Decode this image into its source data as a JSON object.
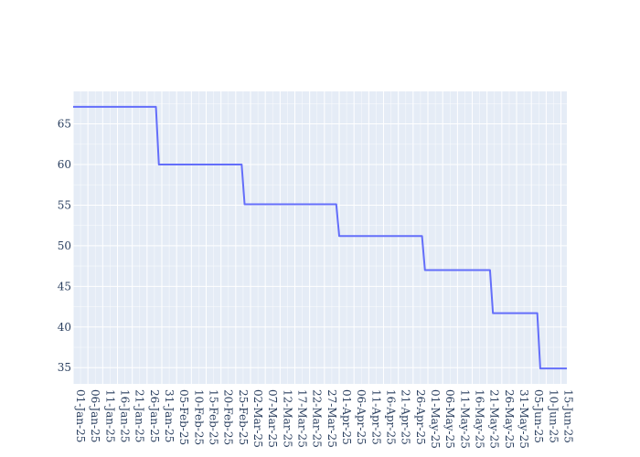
{
  "chart_data": {
    "type": "line",
    "title": "",
    "xlabel": "",
    "ylabel": "",
    "colors": {
      "plot_background": "#e5ecf6",
      "grid": "#ffffff",
      "line": "#636efa",
      "tick_text": "#2a3f5f"
    },
    "grid": true,
    "legend": "none",
    "x_axis_type": "date",
    "x_range": [
      "2025-01-01",
      "2025-06-17"
    ],
    "ylim": [
      33,
      69
    ],
    "y_ticks": [
      35,
      40,
      45,
      50,
      55,
      60,
      65
    ],
    "x_ticks": [
      {
        "date": "2025-01-01",
        "label": "01-Jan-25"
      },
      {
        "date": "2025-01-06",
        "label": "06-Jan-25"
      },
      {
        "date": "2025-01-11",
        "label": "11-Jan-25"
      },
      {
        "date": "2025-01-16",
        "label": "16-Jan-25"
      },
      {
        "date": "2025-01-21",
        "label": "21-Jan-25"
      },
      {
        "date": "2025-01-26",
        "label": "26-Jan-25"
      },
      {
        "date": "2025-01-31",
        "label": "31-Jan-25"
      },
      {
        "date": "2025-02-05",
        "label": "05-Feb-25"
      },
      {
        "date": "2025-02-10",
        "label": "10-Feb-25"
      },
      {
        "date": "2025-02-15",
        "label": "15-Feb-25"
      },
      {
        "date": "2025-02-20",
        "label": "20-Feb-25"
      },
      {
        "date": "2025-02-25",
        "label": "25-Feb-25"
      },
      {
        "date": "2025-03-02",
        "label": "02-Mar-25"
      },
      {
        "date": "2025-03-07",
        "label": "07-Mar-25"
      },
      {
        "date": "2025-03-12",
        "label": "12-Mar-25"
      },
      {
        "date": "2025-03-17",
        "label": "17-Mar-25"
      },
      {
        "date": "2025-03-22",
        "label": "22-Mar-25"
      },
      {
        "date": "2025-03-27",
        "label": "27-Mar-25"
      },
      {
        "date": "2025-04-01",
        "label": "01-Apr-25"
      },
      {
        "date": "2025-04-06",
        "label": "06-Apr-25"
      },
      {
        "date": "2025-04-11",
        "label": "11-Apr-25"
      },
      {
        "date": "2025-04-16",
        "label": "16-Apr-25"
      },
      {
        "date": "2025-04-21",
        "label": "21-Apr-25"
      },
      {
        "date": "2025-04-26",
        "label": "26-Apr-25"
      },
      {
        "date": "2025-05-01",
        "label": "01-May-25"
      },
      {
        "date": "2025-05-06",
        "label": "06-May-25"
      },
      {
        "date": "2025-05-11",
        "label": "11-May-25"
      },
      {
        "date": "2025-05-16",
        "label": "16-May-25"
      },
      {
        "date": "2025-05-21",
        "label": "21-May-25"
      },
      {
        "date": "2025-05-26",
        "label": "26-May-25"
      },
      {
        "date": "2025-05-31",
        "label": "31-May-25"
      },
      {
        "date": "2025-06-05",
        "label": "05-Jun-25"
      },
      {
        "date": "2025-06-10",
        "label": "10-Jun-25"
      },
      {
        "date": "2025-06-15",
        "label": "15-Jun-25"
      }
    ],
    "series": [
      {
        "points": [
          {
            "x": "2025-01-01",
            "y": 67.1
          },
          {
            "x": "2025-01-29",
            "y": 67.1
          },
          {
            "x": "2025-01-30",
            "y": 60.0
          },
          {
            "x": "2025-02-27",
            "y": 60.0
          },
          {
            "x": "2025-02-28",
            "y": 55.1
          },
          {
            "x": "2025-03-31",
            "y": 55.1
          },
          {
            "x": "2025-04-01",
            "y": 51.2
          },
          {
            "x": "2025-04-29",
            "y": 51.2
          },
          {
            "x": "2025-04-30",
            "y": 47.0
          },
          {
            "x": "2025-05-22",
            "y": 47.0
          },
          {
            "x": "2025-05-23",
            "y": 41.7
          },
          {
            "x": "2025-06-07",
            "y": 41.7
          },
          {
            "x": "2025-06-08",
            "y": 34.9
          },
          {
            "x": "2025-06-17",
            "y": 34.9
          }
        ]
      }
    ]
  }
}
